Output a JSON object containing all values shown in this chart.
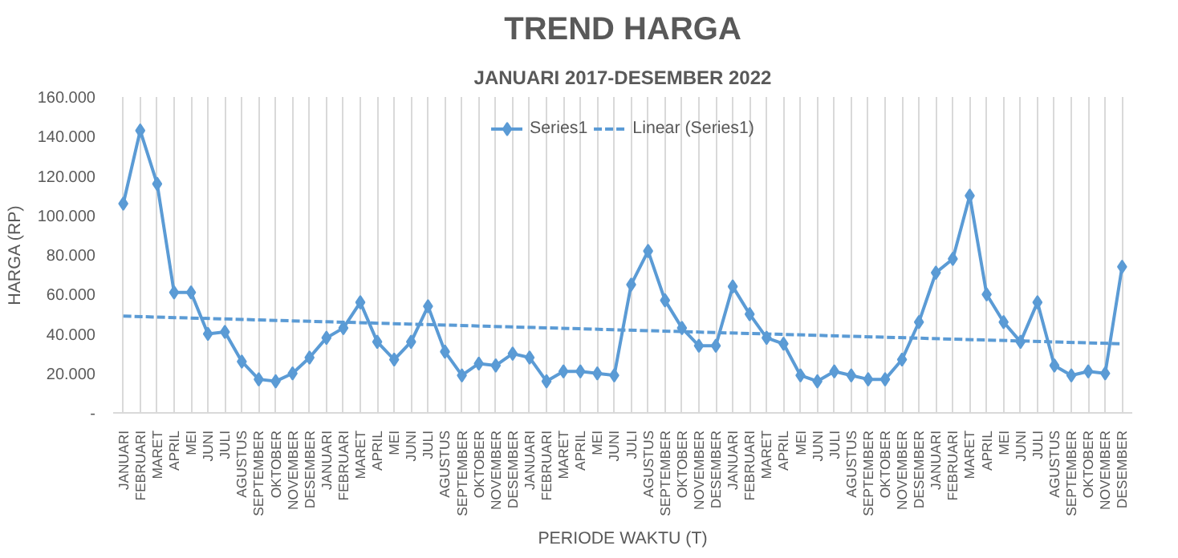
{
  "chart_data": {
    "type": "line",
    "title": "TREND HARGA",
    "subtitle": "JANUARI 2017-DESEMBER 2022",
    "xlabel": "PERIODE WAKTU (T)",
    "ylabel": "HARGA (RP)",
    "categories": [
      "JANUARI",
      "FEBRUARI",
      "MARET",
      "APRIL",
      "MEI",
      "JUNI",
      "JULI",
      "AGUSTUS",
      "SEPTEMBER",
      "OKTOBER",
      "NOVEMBER",
      "DESEMBER",
      "JANUARI",
      "FEBRUARI",
      "MARET",
      "APRIL",
      "MEI",
      "JUNI",
      "JULI",
      "AGUSTUS",
      "SEPTEMBER",
      "OKTOBER",
      "NOVEMBER",
      "DESEMBER",
      "JANUARI",
      "FEBRUARI",
      "MARET",
      "APRIL",
      "MEI",
      "JUNI",
      "JULI",
      "AGUSTUS",
      "SEPTEMBER",
      "OKTOBER",
      "NOVEMBER",
      "DESEMBER",
      "JANUARI",
      "FEBRUARI",
      "MARET",
      "APRIL",
      "MEI",
      "JUNI",
      "JULI",
      "AGUSTUS",
      "SEPTEMBER",
      "OKTOBER",
      "NOVEMBER",
      "DESEMBER",
      "JANUARI",
      "FEBRUARI",
      "MARET",
      "APRIL",
      "MEI",
      "JUNI",
      "JULI",
      "AGUSTUS",
      "SEPTEMBER",
      "OKTOBER",
      "NOVEMBER",
      "DESEMBER"
    ],
    "series": [
      {
        "name": "Series1",
        "color": "#5b9bd5",
        "marker": "diamond",
        "line_style": "solid",
        "values": [
          106000,
          143000,
          116000,
          61000,
          61000,
          40000,
          41000,
          26000,
          17000,
          16000,
          20000,
          28000,
          38000,
          43000,
          56000,
          36000,
          27000,
          36000,
          54000,
          31000,
          19000,
          25000,
          24000,
          30000,
          28000,
          16000,
          21000,
          21000,
          20000,
          19000,
          65000,
          82000,
          57000,
          43000,
          34000,
          34000,
          64000,
          50000,
          38000,
          35000,
          19000,
          16000,
          21000,
          19000,
          17000,
          17000,
          27000,
          46000,
          71000,
          78000,
          110000,
          60000,
          46000,
          36000,
          56000,
          24000,
          19000,
          21000,
          20000,
          74000
        ]
      },
      {
        "name": "Linear (Series1)",
        "color": "#5b9bd5",
        "marker": "none",
        "line_style": "dashed",
        "values": [
          49000,
          null,
          null,
          null,
          null,
          null,
          null,
          null,
          null,
          null,
          null,
          null,
          null,
          null,
          null,
          null,
          null,
          null,
          null,
          null,
          null,
          null,
          null,
          null,
          null,
          null,
          null,
          null,
          null,
          null,
          null,
          null,
          null,
          null,
          null,
          null,
          null,
          null,
          null,
          null,
          null,
          null,
          null,
          null,
          null,
          null,
          null,
          null,
          null,
          null,
          null,
          null,
          null,
          null,
          null,
          null,
          null,
          null,
          null,
          35000
        ]
      }
    ],
    "ylim": [
      0,
      160000
    ],
    "yticks": [
      {
        "value": 0,
        "label": "-"
      },
      {
        "value": 20000,
        "label": "20.000"
      },
      {
        "value": 40000,
        "label": "40.000"
      },
      {
        "value": 60000,
        "label": "60.000"
      },
      {
        "value": 80000,
        "label": "80.000"
      },
      {
        "value": 100000,
        "label": "100.000"
      },
      {
        "value": 120000,
        "label": "120.000"
      },
      {
        "value": 140000,
        "label": "140.000"
      },
      {
        "value": 160000,
        "label": "160.000"
      }
    ],
    "grid": "x",
    "legend": "top"
  }
}
